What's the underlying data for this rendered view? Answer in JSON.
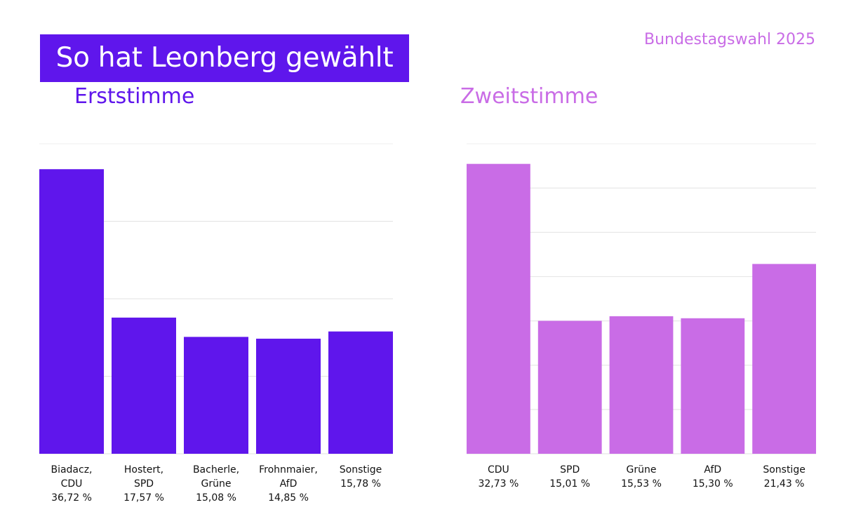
{
  "header": {
    "title": "So hat Leonberg gewählt",
    "election": "Bundestagswahl 2025"
  },
  "colors": {
    "erststimme": "#5f16ec",
    "zweitstimme": "#c96ce6",
    "grid": "#e2e2e2"
  },
  "chart_data": [
    {
      "type": "bar",
      "title": "Erststimme",
      "categories": [
        "Biadacz, CDU",
        "Hostert, SPD",
        "Bacherle, Grüne",
        "Frohnmaier, AfD",
        "Sonstige"
      ],
      "label_lines": [
        [
          "Biadacz,",
          "CDU",
          "36,72 %"
        ],
        [
          "Hostert,",
          "SPD",
          "17,57 %"
        ],
        [
          "Bacherle,",
          "Grüne",
          "15,08 %"
        ],
        [
          "Frohnmaier,",
          "AfD",
          "14,85 %"
        ],
        [
          "Sonstige",
          "15,78 %"
        ]
      ],
      "values": [
        36.72,
        17.57,
        15.08,
        14.85,
        15.78
      ],
      "unit": "%",
      "ylim": [
        0,
        40
      ],
      "grid_step": 10,
      "grid": true,
      "xlabel": "",
      "ylabel": ""
    },
    {
      "type": "bar",
      "title": "Zweitstimme",
      "categories": [
        "CDU",
        "SPD",
        "Grüne",
        "AfD",
        "Sonstige"
      ],
      "label_lines": [
        [
          "CDU",
          "32,73 %"
        ],
        [
          "SPD",
          "15,01 %"
        ],
        [
          "Grüne",
          "15,53 %"
        ],
        [
          "AfD",
          "15,30 %"
        ],
        [
          "Sonstige",
          "21,43 %"
        ]
      ],
      "values": [
        32.73,
        15.01,
        15.53,
        15.3,
        21.43
      ],
      "unit": "%",
      "ylim": [
        0,
        35
      ],
      "grid_step": 5,
      "grid": true,
      "xlabel": "",
      "ylabel": ""
    }
  ]
}
